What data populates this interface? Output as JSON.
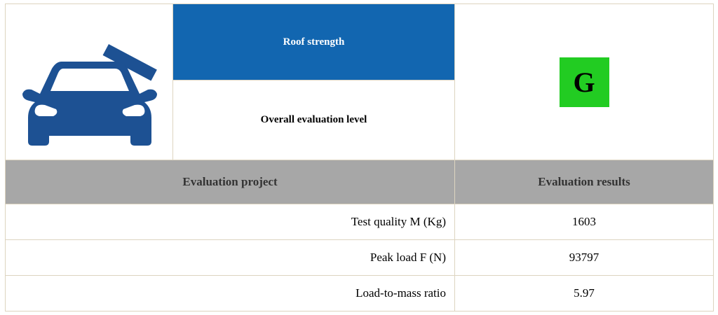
{
  "rating": {
    "category": "Roof strength",
    "overall_label": "Overall evaluation level",
    "grade": "G",
    "grade_color": "#22cc22",
    "header_color": "#1266b0",
    "icon": "car-roof-crush-icon"
  },
  "table": {
    "headers": [
      "Evaluation project",
      "Evaluation results"
    ],
    "rows": [
      {
        "label": "Test quality M (Kg)",
        "value": "1603"
      },
      {
        "label": "Peak load F (N)",
        "value": "93797"
      },
      {
        "label": "Load-to-mass ratio",
        "value": "5.97"
      }
    ]
  }
}
